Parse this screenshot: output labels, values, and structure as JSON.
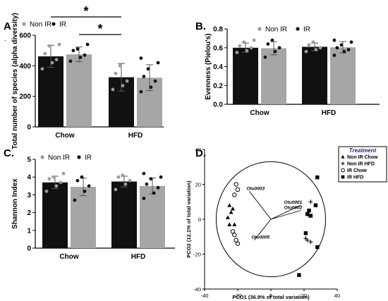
{
  "panels": {
    "A": {
      "letter": "A",
      "dot": "."
    },
    "B": {
      "letter": "B."
    },
    "C": {
      "letter": "C."
    },
    "D": {
      "letter": "D."
    }
  },
  "chart_data": [
    {
      "id": "A",
      "type": "bar",
      "categories": [
        "Chow",
        "HFD"
      ],
      "legend": [
        "Non IR",
        "IR"
      ],
      "ylabel": "Total number of species (alpha diversity)",
      "ylim": [
        0,
        600
      ],
      "yticks": [
        0,
        200,
        400,
        600
      ],
      "colors": [
        "#111111",
        "#a6a6a6"
      ],
      "series": [
        {
          "name": "Non IR",
          "values": [
            462,
            325
          ],
          "err": [
            72,
            90
          ],
          "points": [
            [
              380,
              420,
              440,
              480,
              530,
              540
            ],
            [
              245,
              270,
              300,
              350,
              400
            ]
          ]
        },
        {
          "name": "IR",
          "values": [
            475,
            322
          ],
          "err": [
            48,
            85
          ],
          "points": [
            [
              430,
              455,
              470,
              500,
              510,
              540
            ],
            [
              230,
              260,
              300,
              330,
              380,
              420,
              450
            ]
          ]
        }
      ],
      "significance": [
        {
          "from": [
            0,
            0
          ],
          "to": [
            1,
            0
          ],
          "label": "*"
        },
        {
          "from": [
            0,
            1
          ],
          "to": [
            1,
            0
          ],
          "label": "*"
        }
      ]
    },
    {
      "id": "B",
      "type": "bar",
      "categories": [
        "Chow",
        "HFD"
      ],
      "legend": [
        "Non IR",
        "IR"
      ],
      "ylabel": "Evenness (Pielou's)",
      "ylim": [
        0,
        0.8
      ],
      "yticks": [
        0.0,
        0.2,
        0.4,
        0.6,
        0.8
      ],
      "colors": [
        "#111111",
        "#a6a6a6"
      ],
      "series": [
        {
          "name": "Non IR",
          "values": [
            0.6,
            0.61
          ],
          "err": [
            0.05,
            0.04
          ],
          "points": [
            [
              0.55,
              0.57,
              0.6,
              0.62,
              0.66,
              0.68
            ],
            [
              0.56,
              0.58,
              0.6,
              0.63,
              0.66
            ]
          ]
        },
        {
          "name": "IR",
          "values": [
            0.595,
            0.605
          ],
          "err": [
            0.07,
            0.06
          ],
          "points": [
            [
              0.5,
              0.56,
              0.6,
              0.64,
              0.68
            ],
            [
              0.52,
              0.56,
              0.58,
              0.6,
              0.63,
              0.66,
              0.68
            ]
          ]
        }
      ]
    },
    {
      "id": "C",
      "type": "bar",
      "categories": [
        "Chow",
        "HFD"
      ],
      "legend": [
        "Non IR",
        "IR"
      ],
      "ylabel": "Shannon Index",
      "ylim": [
        0,
        5
      ],
      "yticks": [
        0,
        1,
        2,
        3,
        4,
        5
      ],
      "colors": [
        "#111111",
        "#a6a6a6"
      ],
      "series": [
        {
          "name": "Non IR",
          "values": [
            3.7,
            3.75
          ],
          "err": [
            0.35,
            0.3
          ],
          "points": [
            [
              3.2,
              3.5,
              3.7,
              3.9,
              4.0,
              4.2
            ],
            [
              3.3,
              3.6,
              3.8,
              4.0,
              4.1
            ]
          ]
        },
        {
          "name": "IR",
          "values": [
            3.45,
            3.5
          ],
          "err": [
            0.5,
            0.45
          ],
          "points": [
            [
              2.7,
              3.2,
              3.5,
              3.8,
              4.0
            ],
            [
              2.8,
              3.1,
              3.4,
              3.6,
              3.9,
              4.0,
              4.2
            ]
          ]
        }
      ]
    },
    {
      "id": "D",
      "type": "scatter",
      "xlabel": "PCO1 (36.9% of total variation)",
      "ylabel": "PCO2 (12.1% of total variation)",
      "xlim": [
        -40,
        40
      ],
      "ylim": [
        -40,
        40
      ],
      "xticks": [
        -40,
        -20,
        0,
        20,
        40
      ],
      "yticks": [
        -40,
        -20,
        0,
        20,
        40
      ],
      "legend_title": "Treatment",
      "groups": [
        {
          "name": "Non IR Chow",
          "marker": "triangle",
          "points": [
            [
              -25,
              8
            ],
            [
              -23,
              6
            ],
            [
              -24,
              4
            ],
            [
              -26,
              1
            ],
            [
              -25,
              -3
            ],
            [
              -22,
              -3
            ]
          ]
        },
        {
          "name": "Non IR HFD",
          "marker": "plus",
          "points": [
            [
              24,
              10
            ],
            [
              23,
              2
            ],
            [
              22,
              -12
            ],
            [
              21,
              -11
            ],
            [
              24,
              -13
            ]
          ]
        },
        {
          "name": "IR Chow",
          "marker": "circle",
          "points": [
            [
              -21,
              20
            ],
            [
              -20,
              17
            ],
            [
              -22,
              14
            ],
            [
              -23,
              -7
            ],
            [
              -22,
              -9
            ],
            [
              -21,
              -12
            ],
            [
              -20,
              -14
            ]
          ]
        },
        {
          "name": "IR HFD",
          "marker": "square",
          "points": [
            [
              28,
              24
            ],
            [
              27,
              8
            ],
            [
              23,
              5
            ],
            [
              22,
              3
            ],
            [
              24,
              2
            ],
            [
              21,
              -8
            ],
            [
              28,
              -16
            ],
            [
              17,
              -32
            ]
          ]
        }
      ],
      "vectors": [
        {
          "label": "Otu0003",
          "end": [
            -13,
            16
          ]
        },
        {
          "label": "Otu0001",
          "end": [
            18,
            8
          ]
        },
        {
          "label": "Otu0002",
          "end": [
            18,
            5
          ]
        },
        {
          "label": "Otu0005",
          "end": [
            -10,
            -12
          ]
        }
      ],
      "circle_radius": 33
    }
  ]
}
